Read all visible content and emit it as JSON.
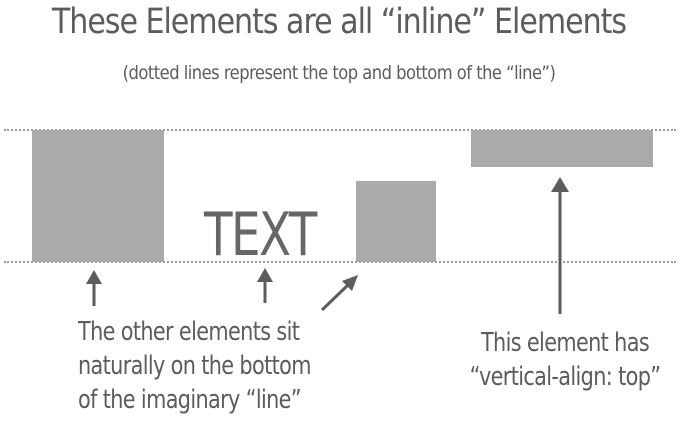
{
  "title": "These Elements are all “inline” Elements",
  "subtitle": "(dotted lines represent the top and bottom of the “line”)",
  "inline_text": "TEXT",
  "caption_left": {
    "lines": [
      "The other elements sit",
      "naturally on the bottom",
      "of the imaginary “line”"
    ]
  },
  "caption_right": {
    "lines": [
      "This element has",
      "“vertical-align: top”"
    ]
  },
  "colors": {
    "box": "#aaaaaa",
    "text": "#5c5c5c",
    "arrow": "#5c5c5c",
    "dotline": "#9a9a9a"
  }
}
